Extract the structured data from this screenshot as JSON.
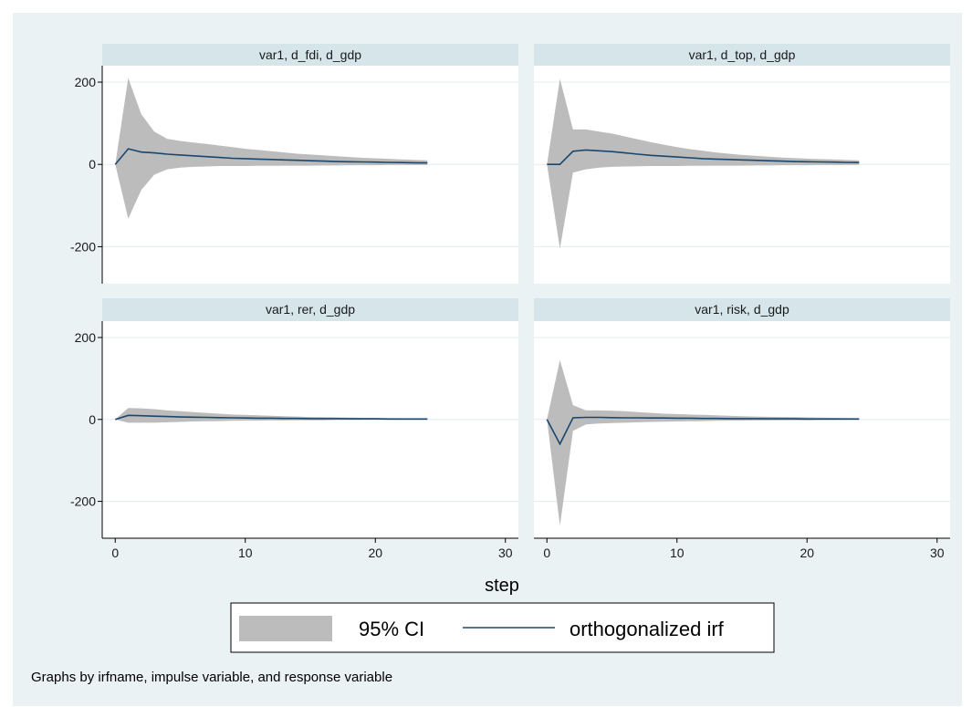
{
  "chart_data": {
    "type": "line",
    "panel_titles": [
      "var1, d_fdi, d_gdp",
      "var1, d_top, d_gdp",
      "var1, rer, d_gdp",
      "var1, risk, d_gdp"
    ],
    "x": [
      0,
      1,
      2,
      3,
      4,
      5,
      6,
      7,
      8,
      9,
      10,
      11,
      12,
      13,
      14,
      15,
      16,
      17,
      18,
      19,
      20,
      21,
      22,
      23,
      24
    ],
    "xlim": [
      -1,
      31
    ],
    "ylim": [
      -290,
      240
    ],
    "x_ticks": [
      0,
      10,
      20,
      30
    ],
    "y_ticks": [
      200,
      0,
      -200
    ],
    "x_tick_labels": [
      "0",
      "10",
      "20",
      "30"
    ],
    "y_tick_labels": [
      "200",
      "0",
      "-200"
    ],
    "xlabel": "step",
    "grid": true,
    "colors": {
      "background": "#eaf2f3",
      "plot_region": "#ffffff",
      "strip": "#d5e5ea",
      "ci_fill": "#bcbcbc",
      "irf_line": "#1a476f",
      "grid": "#e3ecef"
    },
    "panels": [
      {
        "title": "var1, d_fdi, d_gdp",
        "irf": [
          0,
          38,
          30,
          28,
          25,
          23,
          21,
          19,
          17,
          15,
          14,
          13,
          12,
          11,
          10,
          9,
          8,
          7,
          6.5,
          6,
          5.5,
          5,
          4.5,
          4,
          3.5
        ],
        "ci_upper": [
          0,
          210,
          122,
          80,
          62,
          57,
          53,
          50,
          46,
          42,
          38,
          35,
          32,
          29,
          26,
          24,
          22,
          20,
          18,
          16,
          15,
          13.5,
          12,
          11,
          10
        ],
        "ci_lower": [
          0,
          -132,
          -62,
          -25,
          -12,
          -8,
          -6,
          -5,
          -4,
          -4,
          -4,
          -3.5,
          -3.5,
          -3,
          -3,
          -3,
          -2.5,
          -2.5,
          -2,
          -2,
          -2,
          -1.5,
          -1.5,
          -1.5,
          -1
        ]
      },
      {
        "title": "var1, d_top, d_gdp",
        "irf": [
          0,
          0,
          32,
          35,
          33,
          31,
          28,
          25,
          22,
          20,
          18,
          16,
          14,
          13,
          12,
          11,
          10,
          9,
          8,
          7,
          6.5,
          6,
          5.5,
          5,
          4.5
        ],
        "ci_upper": [
          0,
          208,
          85,
          85,
          80,
          75,
          68,
          61,
          54,
          48,
          42,
          37,
          33,
          29,
          26,
          23,
          21,
          19,
          17,
          15.5,
          14,
          13,
          12,
          11,
          10
        ],
        "ci_lower": [
          0,
          -205,
          -20,
          -12,
          -8,
          -6,
          -5,
          -4.5,
          -4,
          -4,
          -4,
          -3.5,
          -3.5,
          -3,
          -3,
          -3,
          -2.5,
          -2.5,
          -2,
          -2,
          -2,
          -1.5,
          -1.5,
          -1.5,
          -1
        ]
      },
      {
        "title": "var1, rer, d_gdp",
        "irf": [
          0,
          10,
          9,
          8,
          7,
          6,
          5.5,
          5,
          4.5,
          4,
          3.5,
          3,
          3,
          2.5,
          2.5,
          2,
          2,
          2,
          1.5,
          1.5,
          1.5,
          1,
          1,
          1,
          1
        ],
        "ci_upper": [
          0,
          28,
          27,
          25,
          22,
          20,
          18,
          16,
          14,
          12,
          11,
          10,
          9,
          8,
          7,
          6,
          5.5,
          5,
          4.5,
          4,
          3.5,
          3,
          3,
          2.5,
          2
        ],
        "ci_lower": [
          0,
          -8,
          -8,
          -8,
          -7,
          -6,
          -5,
          -4.5,
          -4,
          -3.5,
          -3,
          -3,
          -2.5,
          -2.5,
          -2,
          -2,
          -2,
          -1.5,
          -1.5,
          -1.5,
          -1,
          -1,
          -1,
          -1,
          -1
        ]
      },
      {
        "title": "var1, risk, d_gdp",
        "irf": [
          0,
          -60,
          4,
          5,
          5,
          4.5,
          4,
          4,
          3.5,
          3.5,
          3,
          3,
          2.5,
          2.5,
          2,
          2,
          2,
          1.5,
          1.5,
          1.5,
          1,
          1,
          1,
          1,
          1
        ],
        "ci_upper": [
          0,
          145,
          35,
          22,
          22,
          21,
          20,
          18,
          16,
          14,
          13,
          12,
          11,
          10,
          9,
          8,
          7,
          6.5,
          6,
          5.5,
          5,
          4.5,
          4,
          3.5,
          3
        ],
        "ci_lower": [
          0,
          -260,
          -28,
          -12,
          -10,
          -9,
          -8,
          -7,
          -6,
          -5.5,
          -5,
          -4.5,
          -4,
          -3.5,
          -3,
          -3,
          -2.5,
          -2.5,
          -2,
          -2,
          -2,
          -1.5,
          -1.5,
          -1,
          -1
        ]
      }
    ],
    "legend": {
      "position": "bottom",
      "entries": [
        "95% CI",
        "orthogonalized irf"
      ]
    },
    "note": "Graphs by irfname, impulse variable, and response variable"
  }
}
